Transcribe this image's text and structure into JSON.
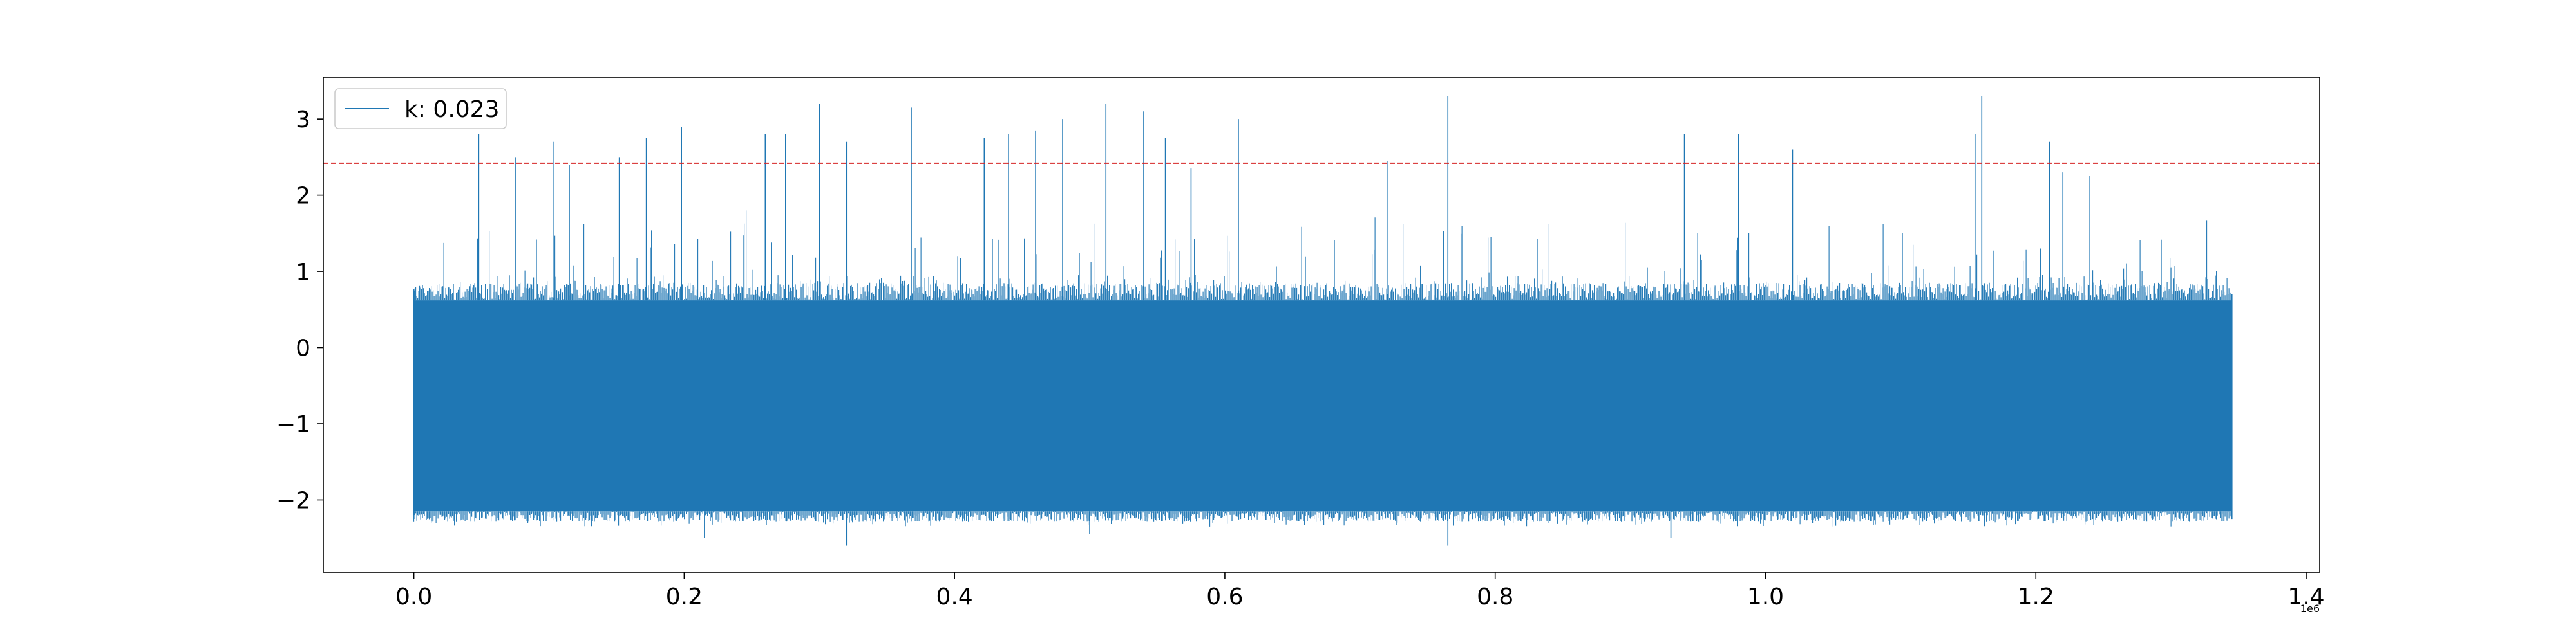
{
  "chart_data": {
    "type": "line",
    "title": "",
    "xlabel": "",
    "ylabel": "",
    "x_offset_label": "1e6",
    "xlim": [
      -0.067,
      1.41
    ],
    "ylim": [
      -2.95,
      3.55
    ],
    "x_ticks": [
      0.0,
      0.2,
      0.4,
      0.6,
      0.8,
      1.0,
      1.2,
      1.4
    ],
    "x_tick_labels": [
      "0.0",
      "0.2",
      "0.4",
      "0.6",
      "0.8",
      "1.0",
      "1.2",
      "1.4"
    ],
    "y_ticks": [
      -2,
      -1,
      0,
      1,
      2,
      3
    ],
    "y_tick_labels": [
      "−2",
      "−1",
      "0",
      "1",
      "2",
      "3"
    ],
    "grid": false,
    "legend": {
      "placement": "top-left",
      "entries": [
        "k: 0.023"
      ]
    },
    "series": [
      {
        "name": "k: 0.023",
        "color": "#1f77b4",
        "x_range": [
          0.0,
          1.345
        ],
        "band": {
          "core_low": -2.15,
          "core_high": 0.62,
          "outer_low": -2.35,
          "outer_high": 0.95
        },
        "spikes": [
          {
            "x": 0.048,
            "y": 2.8
          },
          {
            "x": 0.075,
            "y": 2.5
          },
          {
            "x": 0.103,
            "y": 2.7
          },
          {
            "x": 0.115,
            "y": 2.4
          },
          {
            "x": 0.152,
            "y": 2.5
          },
          {
            "x": 0.172,
            "y": 2.75
          },
          {
            "x": 0.198,
            "y": 2.9
          },
          {
            "x": 0.26,
            "y": 2.8
          },
          {
            "x": 0.275,
            "y": 2.8
          },
          {
            "x": 0.3,
            "y": 3.2
          },
          {
            "x": 0.32,
            "y": 2.7
          },
          {
            "x": 0.368,
            "y": 3.15
          },
          {
            "x": 0.422,
            "y": 2.75
          },
          {
            "x": 0.44,
            "y": 2.8
          },
          {
            "x": 0.46,
            "y": 2.85
          },
          {
            "x": 0.48,
            "y": 3.0
          },
          {
            "x": 0.512,
            "y": 3.2
          },
          {
            "x": 0.54,
            "y": 3.1
          },
          {
            "x": 0.556,
            "y": 2.75
          },
          {
            "x": 0.575,
            "y": 2.35
          },
          {
            "x": 0.61,
            "y": 3.0
          },
          {
            "x": 0.72,
            "y": 2.45
          },
          {
            "x": 0.765,
            "y": 3.3
          },
          {
            "x": 0.94,
            "y": 2.8
          },
          {
            "x": 0.98,
            "y": 2.8
          },
          {
            "x": 1.02,
            "y": 2.6
          },
          {
            "x": 1.16,
            "y": 3.3
          },
          {
            "x": 1.155,
            "y": 2.8
          },
          {
            "x": 1.21,
            "y": 2.7
          },
          {
            "x": 1.22,
            "y": 2.3
          },
          {
            "x": 1.24,
            "y": 2.25
          }
        ],
        "dips": [
          {
            "x": 0.32,
            "y": -2.6
          },
          {
            "x": 0.765,
            "y": -2.6
          },
          {
            "x": 0.215,
            "y": -2.5
          },
          {
            "x": 0.93,
            "y": -2.5
          },
          {
            "x": 0.5,
            "y": -2.45
          }
        ]
      }
    ],
    "threshold": {
      "y": 2.42,
      "color": "#d62728",
      "style": "dashed"
    }
  }
}
